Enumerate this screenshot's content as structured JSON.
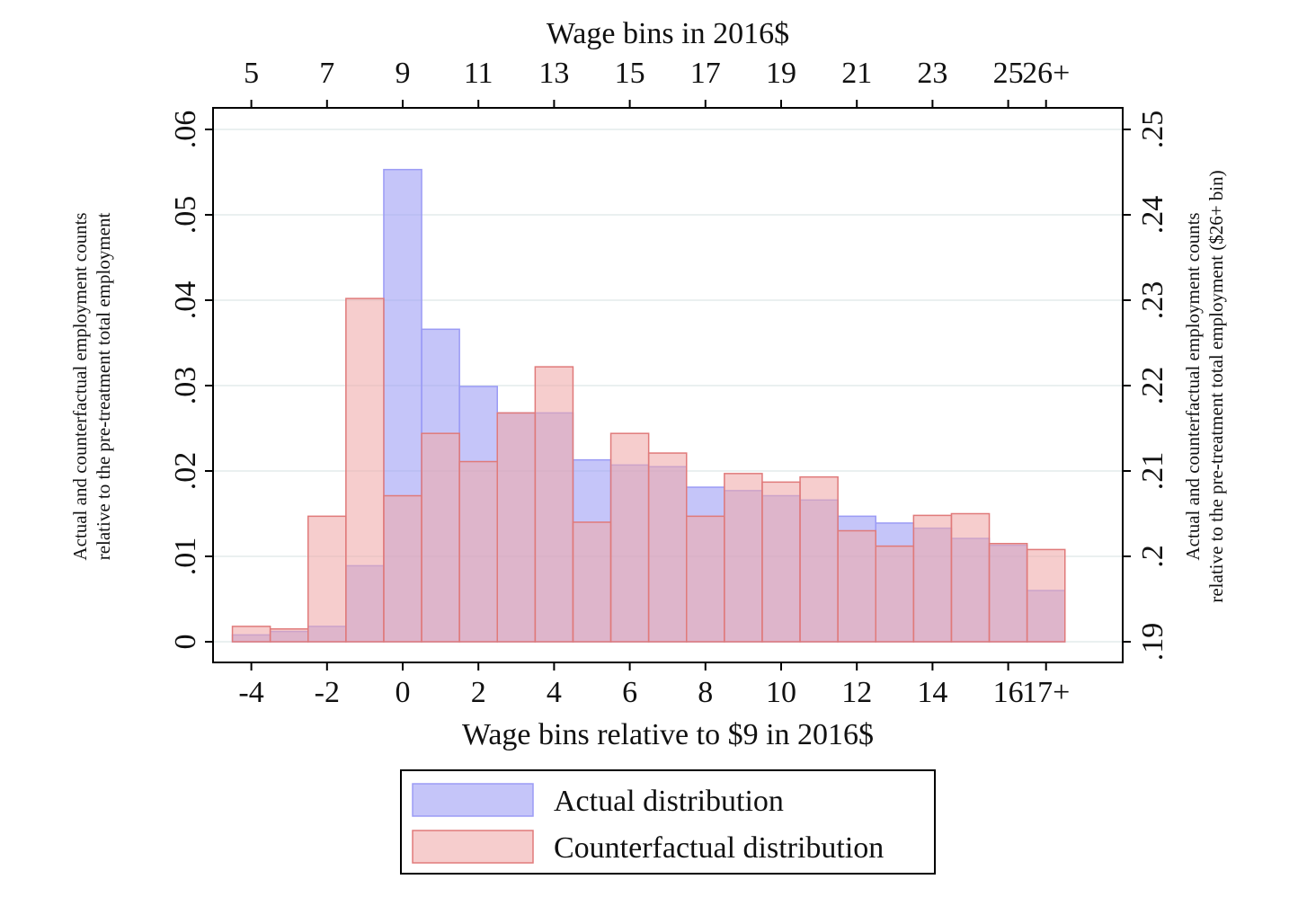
{
  "chart_data": {
    "type": "bar",
    "overlay": true,
    "xlabel_bottom": "Wage bins relative to $9 in 2016$",
    "xlabel_top": "Wage bins in 2016$",
    "ylabel_left": [
      "Actual and counterfactual employment counts",
      "relative to the pre-treatment total employment"
    ],
    "ylabel_right": [
      "Actual and counterfactual employment counts",
      "relative to the pre-treatment total employment ($26+ bin)"
    ],
    "bins": [
      -4,
      -3,
      -2,
      -1,
      0,
      1,
      2,
      3,
      4,
      5,
      6,
      7,
      8,
      9,
      10,
      11,
      12,
      13,
      14,
      15,
      16,
      17
    ],
    "bottom_tick_labels": [
      "-4",
      "-2",
      "0",
      "2",
      "4",
      "6",
      "8",
      "10",
      "12",
      "14",
      "16",
      "17+"
    ],
    "bottom_tick_values": [
      -4,
      -2,
      0,
      2,
      4,
      6,
      8,
      10,
      12,
      14,
      16,
      17
    ],
    "top_tick_labels": [
      "5",
      "7",
      "9",
      "11",
      "13",
      "15",
      "17",
      "19",
      "21",
      "23",
      "25",
      "26+"
    ],
    "top_tick_values": [
      -4,
      -2,
      0,
      2,
      4,
      6,
      8,
      10,
      12,
      14,
      16,
      17
    ],
    "left_ylim": [
      0,
      0.06
    ],
    "left_ticks": [
      0,
      0.01,
      0.02,
      0.03,
      0.04,
      0.05,
      0.06
    ],
    "left_tick_labels": [
      "0",
      ".01",
      ".02",
      ".03",
      ".04",
      ".05",
      ".06"
    ],
    "right_ylim": [
      0.19,
      0.25
    ],
    "right_ticks": [
      0.19,
      0.2,
      0.21,
      0.22,
      0.23,
      0.24,
      0.25
    ],
    "right_tick_labels": [
      ".19",
      ".2",
      ".21",
      ".22",
      ".23",
      ".24",
      ".25"
    ],
    "right_axis_applies_to_bin": 17,
    "grid": true,
    "legend_position": "bottom",
    "series": [
      {
        "name": "Actual distribution",
        "color": "#9b9bf5",
        "values": [
          0.0008,
          0.0012,
          0.0018,
          0.0089,
          0.0553,
          0.0366,
          0.0299,
          0.0268,
          0.0268,
          0.0213,
          0.0207,
          0.0205,
          0.0181,
          0.0177,
          0.0171,
          0.0166,
          0.0147,
          0.0139,
          0.0133,
          0.0121,
          0.0113,
          0.196
        ]
      },
      {
        "name": "Counterfactual distribution",
        "color": "#f0a8a8",
        "values": [
          0.0018,
          0.0015,
          0.0147,
          0.0402,
          0.0171,
          0.0244,
          0.0211,
          0.0268,
          0.0322,
          0.014,
          0.0244,
          0.0221,
          0.0147,
          0.0197,
          0.0187,
          0.0193,
          0.013,
          0.0112,
          0.0148,
          0.015,
          0.0115,
          0.2008
        ]
      }
    ]
  }
}
